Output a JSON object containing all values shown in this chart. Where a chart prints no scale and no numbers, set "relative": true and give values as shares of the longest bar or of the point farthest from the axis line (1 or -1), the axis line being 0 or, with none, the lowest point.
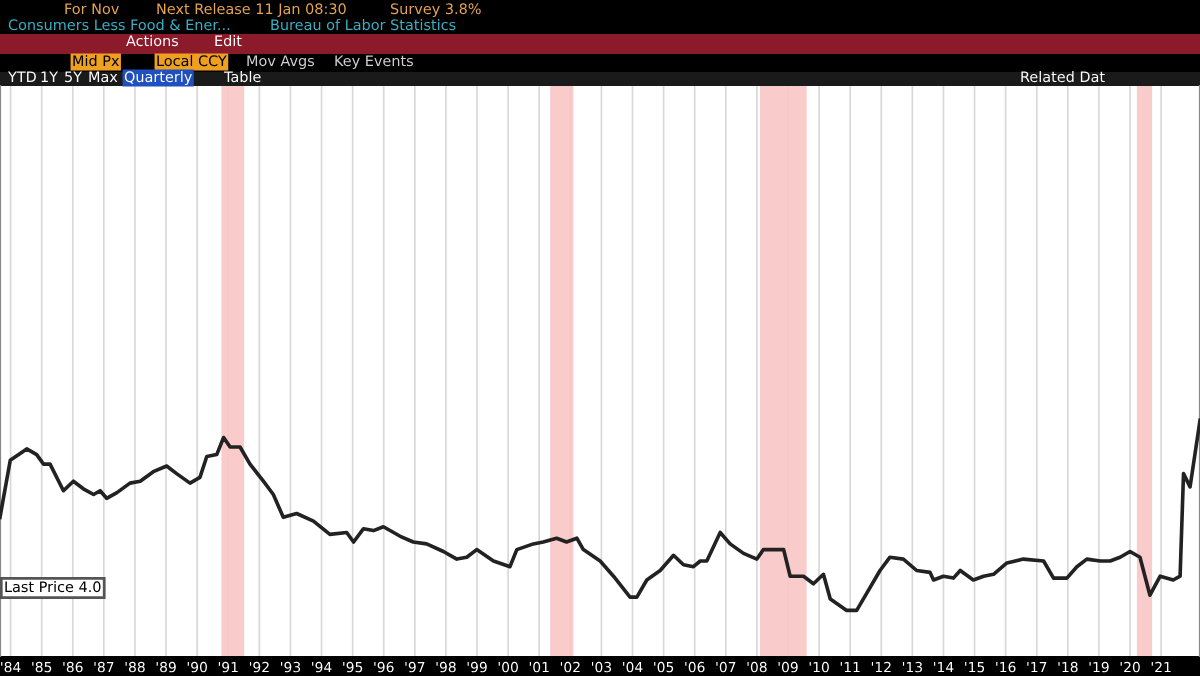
{
  "chart_data": {
    "type": "line",
    "relative": true,
    "annotations": [
      "For Nov",
      "Next Release 11 Jan 08:30",
      "Survey 3.8%",
      "Consumers Less Food & Ener...",
      "Bureau of Labor Statistics",
      "Actions",
      "Edit",
      "Mid Px",
      "Local CCY",
      "Mov Avgs",
      "Key Events",
      "YTD",
      "1Y",
      "5Y",
      "Max",
      "Quarterly",
      "Table",
      "Related Dat",
      "Last Price 4.0"
    ],
    "xlim": [
      1983.66,
      2022.25
    ],
    "xticks": [
      {
        "value": 1984,
        "label": "'84"
      },
      {
        "value": 1985,
        "label": "'85"
      },
      {
        "value": 1986,
        "label": "'86"
      },
      {
        "value": 1987,
        "label": "'87"
      },
      {
        "value": 1988,
        "label": "'88"
      },
      {
        "value": 1989,
        "label": "'89"
      },
      {
        "value": 1990,
        "label": "'90"
      },
      {
        "value": 1991,
        "label": "'91"
      },
      {
        "value": 1992,
        "label": "'92"
      },
      {
        "value": 1993,
        "label": "'93"
      },
      {
        "value": 1994,
        "label": "'94"
      },
      {
        "value": 1995,
        "label": "'95"
      },
      {
        "value": 1996,
        "label": "'96"
      },
      {
        "value": 1997,
        "label": "'97"
      },
      {
        "value": 1998,
        "label": "'98"
      },
      {
        "value": 1999,
        "label": "'99"
      },
      {
        "value": 2000,
        "label": "'00"
      },
      {
        "value": 2001,
        "label": "'01"
      },
      {
        "value": 2002,
        "label": "'02"
      },
      {
        "value": 2003,
        "label": "'03"
      },
      {
        "value": 2004,
        "label": "'04"
      },
      {
        "value": 2005,
        "label": "'05"
      },
      {
        "value": 2006,
        "label": "'06"
      },
      {
        "value": 2007,
        "label": "'07"
      },
      {
        "value": 2008,
        "label": "'08"
      },
      {
        "value": 2009,
        "label": "'09"
      },
      {
        "value": 2010,
        "label": "'10"
      },
      {
        "value": 2011,
        "label": "'11"
      },
      {
        "value": 2012,
        "label": "'12"
      },
      {
        "value": 2013,
        "label": "'13"
      },
      {
        "value": 2014,
        "label": "'14"
      },
      {
        "value": 2015,
        "label": "'15"
      },
      {
        "value": 2016,
        "label": "'16"
      },
      {
        "value": 2017,
        "label": "'17"
      },
      {
        "value": 2018,
        "label": "'18"
      },
      {
        "value": 2019,
        "label": "'19"
      },
      {
        "value": 2020,
        "label": "'20"
      },
      {
        "value": 2021,
        "label": "'21"
      }
    ],
    "grid": "x",
    "legend": false,
    "marker": "none",
    "line_style": "solid",
    "bands": [
      {
        "axis": "x",
        "from": 1990.78,
        "to": 1991.51,
        "color": "#f9c5c5"
      },
      {
        "axis": "x",
        "from": 2001.35,
        "to": 2002.1,
        "color": "#f9c5c5"
      },
      {
        "axis": "x",
        "from": 2008.1,
        "to": 2009.6,
        "color": "#f9c5c5"
      },
      {
        "axis": "x",
        "from": 2020.22,
        "to": 2020.71,
        "color": "#f9c5c5"
      }
    ],
    "series": [
      {
        "color": "#222222",
        "x": [
          1983.66,
          1983.99,
          1984.52,
          1984.84,
          1985.06,
          1985.27,
          1985.7,
          1986.02,
          1986.34,
          1986.67,
          1986.88,
          1987.09,
          1987.42,
          1987.84,
          1988.17,
          1988.59,
          1989.02,
          1989.34,
          1989.77,
          1990.09,
          1990.31,
          1990.63,
          1990.85,
          1991.06,
          1991.38,
          1991.7,
          1992.13,
          1992.45,
          1992.77,
          1993.2,
          1993.74,
          1994.27,
          1994.81,
          1995.03,
          1995.35,
          1995.67,
          1995.99,
          1996.53,
          1996.95,
          1997.38,
          1997.92,
          1998.35,
          1998.67,
          1998.99,
          1999.53,
          2000.06,
          2000.28,
          2000.81,
          2001.13,
          2001.56,
          2001.88,
          2002.21,
          2002.42,
          2002.96,
          2003.39,
          2003.92,
          2004.14,
          2004.46,
          2004.89,
          2005.32,
          2005.64,
          2005.96,
          2006.18,
          2006.39,
          2006.82,
          2007.14,
          2007.57,
          2008.0,
          2008.21,
          2008.86,
          2009.07,
          2009.5,
          2009.82,
          2010.14,
          2010.36,
          2010.89,
          2011.21,
          2011.53,
          2011.96,
          2012.28,
          2012.71,
          2013.14,
          2013.57,
          2013.68,
          2014.0,
          2014.32,
          2014.54,
          2014.96,
          2015.29,
          2015.61,
          2016.04,
          2016.57,
          2017.22,
          2017.54,
          2017.97,
          2018.29,
          2018.61,
          2019.04,
          2019.36,
          2019.68,
          2020.0,
          2020.32,
          2020.64,
          2020.97,
          2021.39,
          2021.61,
          2021.72,
          2021.93,
          2022.25
        ],
        "values": [
          0.49,
          0.79,
          0.85,
          0.82,
          0.77,
          0.77,
          0.63,
          0.68,
          0.64,
          0.61,
          0.63,
          0.59,
          0.62,
          0.67,
          0.68,
          0.73,
          0.76,
          0.72,
          0.67,
          0.7,
          0.81,
          0.82,
          0.91,
          0.86,
          0.86,
          0.77,
          0.68,
          0.61,
          0.49,
          0.51,
          0.47,
          0.4,
          0.41,
          0.36,
          0.43,
          0.42,
          0.44,
          0.39,
          0.36,
          0.35,
          0.31,
          0.27,
          0.28,
          0.32,
          0.26,
          0.23,
          0.32,
          0.35,
          0.36,
          0.38,
          0.36,
          0.38,
          0.32,
          0.26,
          0.18,
          0.07,
          0.07,
          0.16,
          0.21,
          0.29,
          0.24,
          0.23,
          0.26,
          0.26,
          0.41,
          0.35,
          0.3,
          0.27,
          0.32,
          0.32,
          0.18,
          0.18,
          0.14,
          0.19,
          0.06,
          0.0,
          0.0,
          0.09,
          0.21,
          0.28,
          0.27,
          0.21,
          0.2,
          0.16,
          0.18,
          0.17,
          0.21,
          0.16,
          0.18,
          0.19,
          0.25,
          0.27,
          0.26,
          0.17,
          0.17,
          0.23,
          0.27,
          0.26,
          0.26,
          0.28,
          0.31,
          0.28,
          0.08,
          0.18,
          0.16,
          0.18,
          0.72,
          0.65,
          1.0
        ]
      }
    ]
  }
}
